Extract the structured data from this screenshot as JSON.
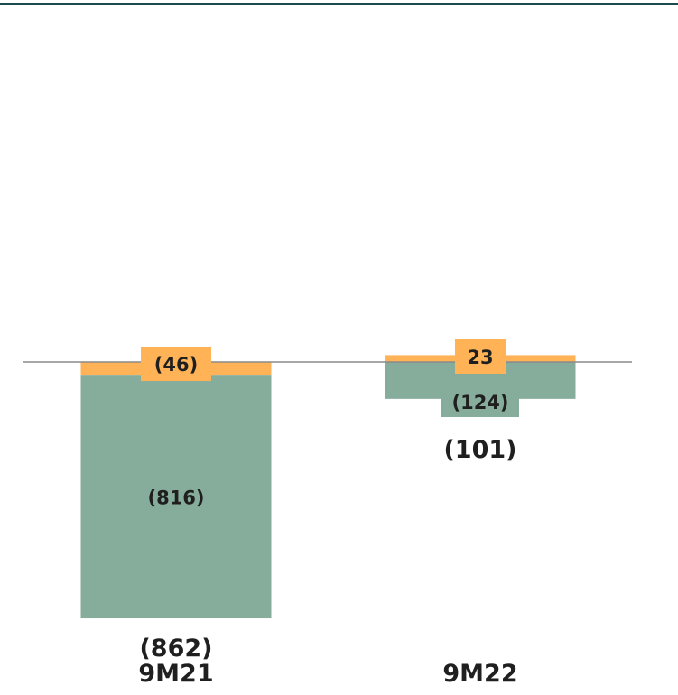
{
  "chart_data": {
    "type": "bar",
    "stacked": true,
    "categories": [
      "9M21",
      "9M22"
    ],
    "series": [
      {
        "key": "green_component",
        "color": "#86ad9c",
        "values": [
          -816,
          -124
        ],
        "labels": [
          "(816)",
          "(124)"
        ]
      },
      {
        "key": "orange_component",
        "color": "#ffb256",
        "values": [
          -46,
          23
        ],
        "labels": [
          "(46)",
          "23"
        ]
      }
    ],
    "totals": [
      -862,
      -101
    ],
    "total_labels": [
      "(862)",
      "(101)"
    ],
    "title": "",
    "xlabel": "",
    "ylabel": "",
    "ylim": [
      -900,
      1000
    ],
    "grid": false,
    "legend": "none"
  },
  "colors": {
    "top_rule": "#1d4a4a",
    "baseline": "#8a8a8a",
    "text": "#1f1f1f"
  }
}
